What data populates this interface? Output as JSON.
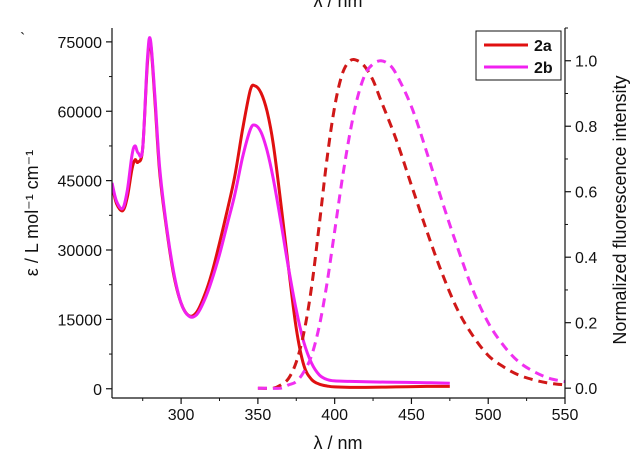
{
  "chart_data": {
    "type": "line",
    "title": "",
    "top_label": "λ / nm",
    "xlabel": "λ / nm",
    "ylabel_left": "ε / L mol⁻¹ cm⁻¹",
    "ylabel_right": "Normalized fluorescence intensity",
    "xlim": [
      255,
      550
    ],
    "ylim_left": [
      -2000,
      78000
    ],
    "ylim_right": [
      -0.03,
      1.1
    ],
    "x_ticks": [
      300,
      350,
      400,
      450,
      500,
      550
    ],
    "y_left_ticks": [
      0,
      15000,
      30000,
      45000,
      60000,
      75000
    ],
    "y_right_ticks": [
      0.0,
      0.2,
      0.4,
      0.6,
      0.8,
      1.0
    ],
    "y_right_tick_labels": [
      "0.0",
      "0.2",
      "0.4",
      "0.6",
      "0.8",
      "1.0"
    ],
    "legend_position": "top-right",
    "grid": false,
    "series": [
      {
        "name": "2a",
        "kind": "absorption",
        "axis": "left",
        "color": "#e01010",
        "dash": "solid",
        "x": [
          255,
          258,
          262,
          265,
          268,
          270,
          272,
          275,
          278,
          280,
          283,
          286,
          290,
          295,
          300,
          305,
          310,
          315,
          320,
          325,
          330,
          335,
          340,
          345,
          348,
          352,
          356,
          360,
          365,
          370,
          375,
          380,
          385,
          390,
          395,
          400,
          410,
          420,
          440,
          460,
          475
        ],
        "y": [
          44000,
          40000,
          38500,
          41500,
          47500,
          49500,
          49000,
          52000,
          70000,
          75000,
          62000,
          47000,
          36000,
          25000,
          18500,
          15800,
          16500,
          20000,
          25000,
          31500,
          38500,
          46000,
          56000,
          64500,
          65500,
          64000,
          60000,
          53000,
          40000,
          26000,
          13000,
          5000,
          2000,
          1000,
          600,
          400,
          300,
          300,
          400,
          500,
          500
        ]
      },
      {
        "name": "2b",
        "kind": "absorption",
        "axis": "left",
        "color": "#f020f0",
        "dash": "solid",
        "x": [
          255,
          258,
          262,
          265,
          268,
          270,
          272,
          275,
          278,
          280,
          283,
          286,
          290,
          295,
          300,
          305,
          310,
          315,
          320,
          325,
          330,
          335,
          340,
          345,
          348,
          352,
          356,
          360,
          365,
          370,
          375,
          380,
          385,
          390,
          395,
          400,
          410,
          420,
          440,
          460,
          475
        ],
        "y": [
          44500,
          40500,
          39000,
          43000,
          50500,
          52500,
          51000,
          52000,
          71000,
          75500,
          63000,
          48000,
          36500,
          25500,
          18500,
          15700,
          16000,
          19000,
          23500,
          29000,
          35500,
          42000,
          50000,
          56000,
          57000,
          55500,
          51500,
          45500,
          36000,
          26000,
          17000,
          10000,
          5500,
          3000,
          2000,
          1700,
          1600,
          1500,
          1400,
          1300,
          1200
        ]
      },
      {
        "name": "2a",
        "kind": "fluorescence",
        "axis": "right",
        "color": "#d01818",
        "dash": "dashed",
        "x": [
          350,
          360,
          365,
          370,
          375,
          380,
          385,
          390,
          395,
          400,
          405,
          410,
          415,
          420,
          425,
          430,
          440,
          450,
          460,
          470,
          480,
          490,
          500,
          510,
          520,
          530,
          540,
          550
        ],
        "y": [
          0.0,
          0.0,
          0.01,
          0.03,
          0.08,
          0.17,
          0.31,
          0.5,
          0.7,
          0.86,
          0.96,
          1.0,
          1.0,
          0.98,
          0.94,
          0.88,
          0.76,
          0.62,
          0.48,
          0.35,
          0.24,
          0.16,
          0.1,
          0.065,
          0.04,
          0.025,
          0.015,
          0.01
        ]
      },
      {
        "name": "2b",
        "kind": "fluorescence",
        "axis": "right",
        "color": "#f030f0",
        "dash": "dashed",
        "x": [
          350,
          358,
          365,
          370,
          375,
          380,
          385,
          390,
          395,
          400,
          405,
          410,
          415,
          420,
          425,
          430,
          435,
          440,
          450,
          460,
          470,
          480,
          490,
          500,
          510,
          520,
          530,
          540,
          550
        ],
        "y": [
          0.0,
          0.0,
          0.0,
          0.01,
          0.02,
          0.05,
          0.1,
          0.19,
          0.32,
          0.48,
          0.64,
          0.78,
          0.89,
          0.96,
          0.99,
          1.0,
          0.99,
          0.96,
          0.86,
          0.72,
          0.57,
          0.43,
          0.3,
          0.2,
          0.13,
          0.08,
          0.05,
          0.03,
          0.02
        ]
      }
    ]
  }
}
